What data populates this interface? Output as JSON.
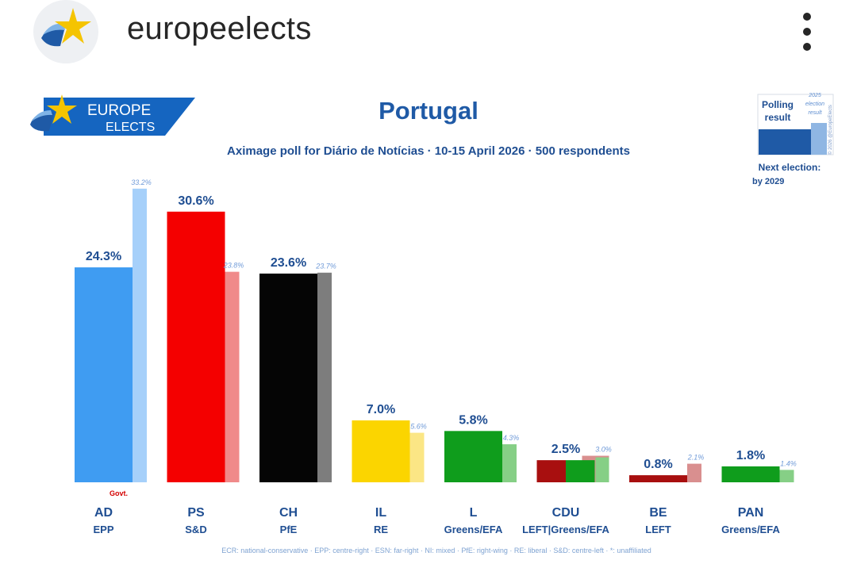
{
  "post": {
    "username": "europeelects",
    "avatar_icon": "europe-elects-logo-icon",
    "more_icon": "more-vertical-icon"
  },
  "logo": {
    "line1": "EUROPE",
    "line2": "ELECTS"
  },
  "legend_box": {
    "polling_label_1": "Polling",
    "polling_label_2": "result",
    "election_label_1": "2025",
    "election_label_2": "election",
    "election_label_3": "result",
    "credit": "© 2026 @EuropeElects",
    "next_election_1": "Next election:",
    "next_election_2": "by 2029"
  },
  "footer_note": "ECR: national-conservative · EPP: centre-right · ESN: far-right · NI: mixed · PfE: right-wing · RE: liberal · S&D: centre-left · *: unaffiliated",
  "colors": {
    "title": "#1f5aa6",
    "label": "#1f4e92",
    "logo_bg": "#1565c0",
    "star": "#f5c400"
  },
  "chart_data": {
    "type": "bar",
    "title": "Portugal",
    "subtitle": "Aximage poll for Diário de Notícias · 10-15 April 2026 · 500 respondents",
    "ylim": [
      0,
      35
    ],
    "grid": false,
    "categories": [
      {
        "party": "AD",
        "group": "EPP",
        "poll": 24.3,
        "poll_label": "24.3%",
        "election": 33.2,
        "election_label": "33.2%",
        "color": "#3f9cf2",
        "election_color": "#a6d0fa",
        "note": "Govt."
      },
      {
        "party": "PS",
        "group": "S&D",
        "poll": 30.6,
        "poll_label": "30.6%",
        "election": 23.8,
        "election_label": "23.8%",
        "color": "#f40000",
        "election_color": "#f08a8a",
        "note": ""
      },
      {
        "party": "CH",
        "group": "PfE",
        "poll": 23.6,
        "poll_label": "23.6%",
        "election": 23.7,
        "election_label": "23.7%",
        "color": "#050505",
        "election_color": "#7d7d7d",
        "note": ""
      },
      {
        "party": "IL",
        "group": "RE",
        "poll": 7.0,
        "poll_label": "7.0%",
        "election": 5.6,
        "election_label": "5.6%",
        "color": "#fbd500",
        "election_color": "#fbe685",
        "note": ""
      },
      {
        "party": "L",
        "group": "Greens/EFA",
        "poll": 5.8,
        "poll_label": "5.8%",
        "election": 4.3,
        "election_label": "4.3%",
        "color": "#0f9d1c",
        "election_color": "#86cf86",
        "note": ""
      },
      {
        "party": "CDU",
        "group": "LEFT|Greens/EFA",
        "poll": 2.5,
        "poll_label": "2.5%",
        "election": 3.0,
        "election_label": "3.0%",
        "color": "#a80f0f",
        "color2": "#0f9d1c",
        "election_color": "#d98f8f",
        "election_color2": "#86cf86",
        "note": ""
      },
      {
        "party": "BE",
        "group": "LEFT",
        "poll": 0.8,
        "poll_label": "0.8%",
        "election": 2.1,
        "election_label": "2.1%",
        "color": "#a80f0f",
        "election_color": "#d98f8f",
        "note": ""
      },
      {
        "party": "PAN",
        "group": "Greens/EFA",
        "poll": 1.8,
        "poll_label": "1.8%",
        "election": 1.4,
        "election_label": "1.4%",
        "color": "#0f9d1c",
        "election_color": "#86cf86",
        "note": ""
      }
    ]
  }
}
